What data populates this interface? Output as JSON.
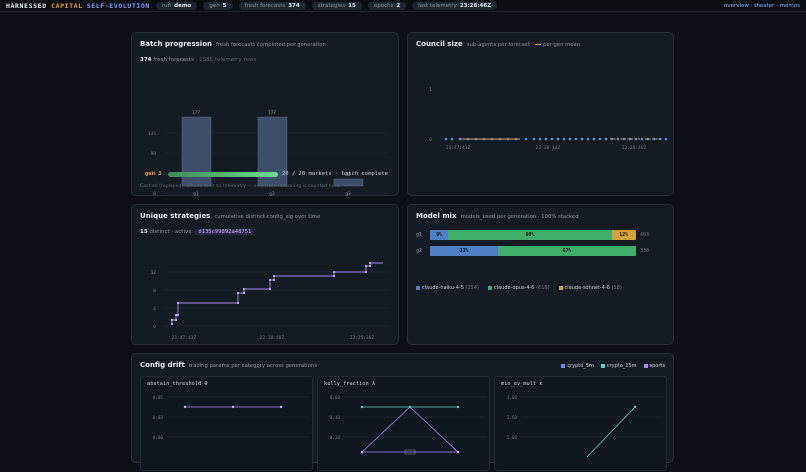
{
  "brand": {
    "name_a": "HARNESSED ",
    "name_b": "CAPITAL",
    "suffix": "SELF-EVOLUTION"
  },
  "pills": [
    {
      "label": "run",
      "value": "demo"
    },
    {
      "label": "gen",
      "value": "5"
    },
    {
      "label": "fresh forecasts",
      "value": "374"
    },
    {
      "label": "strategies",
      "value": "15"
    },
    {
      "label": "epochs",
      "value": "2"
    },
    {
      "label": "last telemetry",
      "value": "23:28:46Z"
    }
  ],
  "nav": "overview · theater · memos",
  "batch": {
    "title": "Batch progression",
    "desc": "fresh forecasts completed per generation",
    "count": "374",
    "count_label": "fresh forecasts",
    "rows": "· 1585 telemetry rows",
    "y_ticks": [
      "135",
      "90",
      "45",
      "0"
    ],
    "bars": [
      {
        "label": "g1",
        "value": 177,
        "value_label": "177"
      },
      {
        "label": "g2",
        "value": 177,
        "value_label": "177"
      },
      {
        "label": "g3",
        "value": 20,
        "value_label": "20"
      }
    ],
    "gen_label": "gen 3",
    "progress": 1.0,
    "progress_text": "20 / 20 markets · batch complete",
    "note": "Cached (replayed) rollouts emit no telemetry — only fresh reasoning is counted here."
  },
  "council": {
    "title": "Council size",
    "desc": "sub-agents per forecast ·",
    "legend": "per-gen mean",
    "y_ticks": [
      "1",
      "0"
    ],
    "x_ticks": [
      "21:47:43Z",
      "22:38:14Z",
      "23:28:46Z"
    ]
  },
  "strategies": {
    "title": "Unique strategies",
    "desc": "cumulative distinct config_sig over time",
    "count": "15",
    "count_label": "distinct · active",
    "sig": "d135c99892a48751",
    "y_ticks": [
      "12",
      "8",
      "4",
      "0"
    ],
    "x_ticks": [
      "21:47:43Z",
      "22:38:40Z",
      "23:25:30Z"
    ]
  },
  "model_mix": {
    "title": "Model mix",
    "desc": "models_used per generation · 100% stacked",
    "rows": [
      {
        "gen": "g1",
        "segments": [
          {
            "pct": 9,
            "label": "9%",
            "color": "#4f7fc4"
          },
          {
            "pct": 80,
            "label": "80%",
            "color": "#3fae6a"
          },
          {
            "pct": 12,
            "label": "12%",
            "color": "#d4a23a"
          }
        ],
        "total": "463"
      },
      {
        "gen": "g2",
        "segments": [
          {
            "pct": 33,
            "label": "33%",
            "color": "#4f7fc4"
          },
          {
            "pct": 67,
            "label": "67%",
            "color": "#3fae6a"
          }
        ],
        "total": "330"
      }
    ],
    "legend": [
      {
        "name": "claude-haiku-4-5",
        "count": "(154)",
        "color": "#4f7fc4"
      },
      {
        "name": "claude-opus-4-6",
        "count": "(616)",
        "color": "#3fae6a"
      },
      {
        "name": "claude-sonnet-4-6",
        "count": "(58)",
        "color": "#d4a23a"
      }
    ]
  },
  "drift": {
    "title": "Config drift",
    "desc": "trading params per category across generations",
    "legend": [
      {
        "name": "crypto_5m",
        "color": "#5b8cff"
      },
      {
        "name": "crypto_15m",
        "color": "#5ad1c4"
      },
      {
        "name": "sports",
        "color": "#a78bfa"
      }
    ],
    "subs": [
      {
        "title": "abstain_threshold θ",
        "ticks": [
          "0.05",
          "0.03",
          "0.00"
        ]
      },
      {
        "title": "kelly_fraction λ",
        "ticks": [
          "0.60",
          "0.40",
          "0.20"
        ]
      },
      {
        "title": "min_ev_mult κ",
        "ticks": [
          "3.00",
          "1.60",
          "1.00"
        ]
      }
    ]
  }
}
